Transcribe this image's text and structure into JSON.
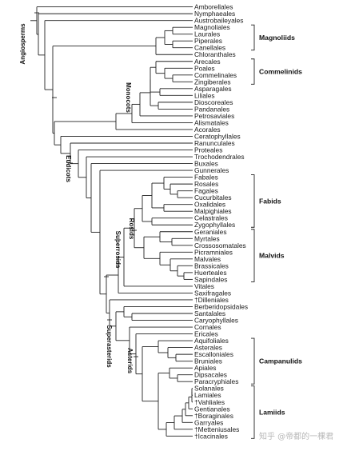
{
  "taxa": [
    "Amborellales",
    "Nymphaeales",
    "Austrobaileyales",
    "Magnoliales",
    "Laurales",
    "Piperales",
    "Canellales",
    "Chloranthales",
    "Arecales",
    "Poales",
    "Commelinales",
    "Zingiberales",
    "Asparagales",
    "Liliales",
    "Dioscoreales",
    "Pandanales",
    "Petrosaviales",
    "Alismatales",
    "Acorales",
    "Ceratophyllales",
    "Ranunculales",
    "Proteales",
    "Trochodendrales",
    "Buxales",
    "Gunnerales",
    "Fabales",
    "Rosales",
    "Fagales",
    "Cucurbitales",
    "Oxalidales",
    "Malpighiales",
    "Celastrales",
    "Zygophyllales",
    "Geraniales",
    "Myrtales",
    "Crossosomatales",
    "Picramniales",
    "Malvales",
    "Brassicales",
    "Huerteales",
    "Sapindales",
    "Vitales",
    "Saxifragales",
    "†Dilleniales",
    "Berberidopsidales",
    "Santalales",
    "Caryophyllales",
    "Cornales",
    "Ericales",
    "Aquifoliales",
    "Asterales",
    "Escalloniales",
    "Bruniales",
    "Apiales",
    "Dipsacales",
    "Paracryphiales",
    "Solanales",
    "Lamiales",
    "†Vahliales",
    "Gentianales",
    "†Boraginales",
    "Garryales",
    "†Metteniusales",
    "†Icacinales"
  ],
  "groups": [
    {
      "name": "Magnoliids",
      "from": 3,
      "to": 6
    },
    {
      "name": "Commelinids",
      "from": 8,
      "to": 11
    },
    {
      "name": "Fabids",
      "from": 25,
      "to": 32
    },
    {
      "name": "Malvids",
      "from": 33,
      "to": 40
    },
    {
      "name": "Campanulids",
      "from": 49,
      "to": 55
    },
    {
      "name": "Lamiids",
      "from": 56,
      "to": 63
    }
  ],
  "clade_labels": {
    "angiosperms": "Angiosperms",
    "monocots": "Monocots",
    "eudicots": "Eudicots",
    "superrosids": "Superrosids",
    "rosids": "Rosids",
    "superasterids": "Superasterids",
    "asterids": "Asterids"
  },
  "watermark": "知乎 @帝都的一棵君"
}
